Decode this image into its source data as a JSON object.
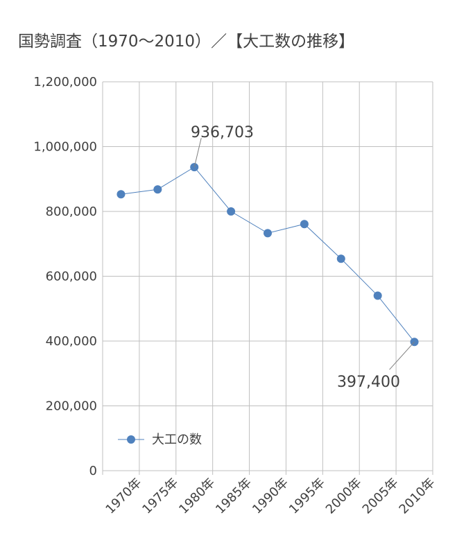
{
  "chart_data": {
    "type": "line",
    "title": "国勢調査（1970〜2010）／【大工数の推移】",
    "categories": [
      "1970年",
      "1975年",
      "1980年",
      "1985年",
      "1990年",
      "1995年",
      "2000年",
      "2005年",
      "2010年"
    ],
    "series": [
      {
        "name": "大工の数",
        "values": [
          853000,
          868000,
          936703,
          800000,
          733000,
          761000,
          654000,
          540000,
          397400
        ]
      }
    ],
    "ylim": [
      0,
      1200000
    ],
    "yticks": [
      0,
      200000,
      400000,
      600000,
      800000,
      1000000,
      1200000
    ],
    "ytick_labels": [
      "0",
      "200,000",
      "400,000",
      "600,000",
      "800,000",
      "1,000,000",
      "1,200,000"
    ],
    "annotations": [
      {
        "index": 2,
        "text": "936,703"
      },
      {
        "index": 8,
        "text": "397,400"
      }
    ],
    "legend": "bottom-left",
    "grid": true,
    "colors": {
      "line": "#4f81bd",
      "grid": "#bfbfbf",
      "text": "#404040"
    }
  }
}
